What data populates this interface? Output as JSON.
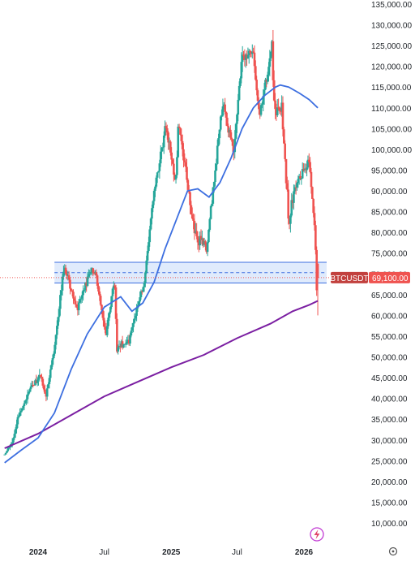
{
  "chart_data": {
    "type": "candlestick",
    "symbol_label": "BTCUSDT",
    "last_price_label": "69,100.00",
    "last_price": 69100,
    "ylim": [
      5000,
      136000
    ],
    "y_ticks": [
      {
        "value": 135000,
        "label": "135,000.00"
      },
      {
        "value": 130000,
        "label": "130,000.00"
      },
      {
        "value": 125000,
        "label": "125,000.00"
      },
      {
        "value": 120000,
        "label": "120,000.00"
      },
      {
        "value": 115000,
        "label": "115,000.00"
      },
      {
        "value": 110000,
        "label": "110,000.00"
      },
      {
        "value": 105000,
        "label": "105,000.00"
      },
      {
        "value": 100000,
        "label": "100,000.00"
      },
      {
        "value": 95000,
        "label": "95,000.00"
      },
      {
        "value": 90000,
        "label": "90,000.00"
      },
      {
        "value": 85000,
        "label": "85,000.00"
      },
      {
        "value": 80000,
        "label": "80,000.00"
      },
      {
        "value": 75000,
        "label": "75,000.00"
      },
      {
        "value": 70000,
        "label": "70,000.00"
      },
      {
        "value": 65000,
        "label": "65,000.00"
      },
      {
        "value": 60000,
        "label": "60,000.00"
      },
      {
        "value": 55000,
        "label": "55,000.00"
      },
      {
        "value": 50000,
        "label": "50,000.00"
      },
      {
        "value": 45000,
        "label": "45,000.00"
      },
      {
        "value": 40000,
        "label": "40,000.00"
      },
      {
        "value": 35000,
        "label": "35,000.00"
      },
      {
        "value": 30000,
        "label": "30,000.00"
      },
      {
        "value": 25000,
        "label": "25,000.00"
      },
      {
        "value": 20000,
        "label": "20,000.00"
      },
      {
        "value": 15000,
        "label": "15,000.00"
      },
      {
        "value": 10000,
        "label": "10,000.00"
      }
    ],
    "x_range": [
      "2023-10-01",
      "2026-03-31"
    ],
    "x_ticks": [
      {
        "date": "2024-01-01",
        "label": "2024",
        "bold": true
      },
      {
        "date": "2024-07-01",
        "label": "Jul",
        "bold": false
      },
      {
        "date": "2025-01-01",
        "label": "2025",
        "bold": true
      },
      {
        "date": "2025-07-01",
        "label": "Jul",
        "bold": false
      },
      {
        "date": "2026-01-01",
        "label": "2026",
        "bold": true
      }
    ],
    "zone": {
      "upper": 72800,
      "lower": 67800,
      "mid": 70300,
      "start": "2024-02-15"
    },
    "colors": {
      "up": "#26a69a",
      "down": "#ef5350",
      "ma_short": "#3d6fe0",
      "ma_long": "#7b1fa2",
      "zone_fill": "#dbe8fb",
      "zone_line": "#3d6fe0",
      "price_line": "#ef5350",
      "badge_dark": "#c2413e",
      "badge_red": "#ef5350"
    },
    "anchors": [
      [
        "2023-10-01",
        26500,
        0
      ],
      [
        "2023-10-22",
        29500,
        0.1
      ],
      [
        "2023-11-05",
        35000,
        0.1
      ],
      [
        "2023-12-10",
        42500,
        0.08
      ],
      [
        "2024-01-10",
        45000,
        0.1
      ],
      [
        "2024-01-22",
        40000,
        0.08
      ],
      [
        "2024-02-15",
        52000,
        0.06
      ],
      [
        "2024-03-05",
        67000,
        0.08
      ],
      [
        "2024-03-14",
        71500,
        0.06
      ],
      [
        "2024-04-17",
        61500,
        0.07
      ],
      [
        "2024-05-21",
        70000,
        0.06
      ],
      [
        "2024-06-06",
        71000,
        0.05
      ],
      [
        "2024-07-05",
        55000,
        0.09
      ],
      [
        "2024-07-29",
        68500,
        0.06
      ],
      [
        "2024-08-05",
        52000,
        0.08
      ],
      [
        "2024-09-06",
        54000,
        0.07
      ],
      [
        "2024-10-20",
        68500,
        0.06
      ],
      [
        "2024-11-12",
        88000,
        0.06
      ],
      [
        "2024-12-17",
        106000,
        0.05
      ],
      [
        "2025-01-13",
        92000,
        0.07
      ],
      [
        "2025-01-21",
        106500,
        0.05
      ],
      [
        "2025-02-26",
        84500,
        0.08
      ],
      [
        "2025-03-10",
        78500,
        0.07
      ],
      [
        "2025-04-08",
        76500,
        0.07
      ],
      [
        "2025-05-22",
        111000,
        0.05
      ],
      [
        "2025-06-22",
        100000,
        0.06
      ],
      [
        "2025-07-14",
        122000,
        0.06
      ],
      [
        "2025-08-14",
        123500,
        0.05
      ],
      [
        "2025-09-01",
        108000,
        0.05
      ],
      [
        "2025-10-06",
        125000,
        0.06
      ],
      [
        "2025-10-10",
        110000,
        0.07
      ],
      [
        "2025-11-01",
        110000,
        0.06
      ],
      [
        "2025-11-21",
        82000,
        0.08
      ],
      [
        "2025-12-08",
        92000,
        0.06
      ],
      [
        "2026-01-14",
        97000,
        0.05
      ],
      [
        "2026-01-25",
        88000,
        0.06
      ],
      [
        "2026-02-03",
        75000,
        0.08
      ],
      [
        "2026-02-06",
        63500,
        0.1
      ],
      [
        "2026-02-08",
        69100,
        0.06
      ]
    ],
    "ma_short": [
      [
        "2023-10-01",
        24500
      ],
      [
        "2023-11-15",
        27500
      ],
      [
        "2024-01-01",
        30500
      ],
      [
        "2024-02-15",
        36500
      ],
      [
        "2024-04-01",
        47000
      ],
      [
        "2024-05-15",
        55500
      ],
      [
        "2024-07-01",
        62000
      ],
      [
        "2024-08-15",
        64500
      ],
      [
        "2024-09-15",
        61000
      ],
      [
        "2024-10-15",
        63000
      ],
      [
        "2024-11-15",
        68000
      ],
      [
        "2024-12-15",
        76000
      ],
      [
        "2025-01-15",
        83000
      ],
      [
        "2025-02-15",
        90000
      ],
      [
        "2025-03-15",
        90500
      ],
      [
        "2025-04-15",
        88500
      ],
      [
        "2025-05-15",
        92000
      ],
      [
        "2025-06-15",
        98000
      ],
      [
        "2025-07-15",
        105000
      ],
      [
        "2025-08-15",
        110000
      ],
      [
        "2025-09-15",
        113000
      ],
      [
        "2025-10-15",
        115000
      ],
      [
        "2025-10-28",
        115500
      ],
      [
        "2025-11-20",
        115000
      ],
      [
        "2025-12-20",
        113500
      ],
      [
        "2026-01-15",
        112000
      ],
      [
        "2026-02-08",
        110000
      ]
    ],
    "ma_long": [
      [
        "2023-10-01",
        28000
      ],
      [
        "2024-01-01",
        31500
      ],
      [
        "2024-04-01",
        36000
      ],
      [
        "2024-07-01",
        40500
      ],
      [
        "2024-10-01",
        44000
      ],
      [
        "2025-01-01",
        47500
      ],
      [
        "2025-04-01",
        50500
      ],
      [
        "2025-07-01",
        54500
      ],
      [
        "2025-10-01",
        58000
      ],
      [
        "2025-12-01",
        61000
      ],
      [
        "2026-01-15",
        62500
      ],
      [
        "2026-02-08",
        63500
      ]
    ]
  }
}
